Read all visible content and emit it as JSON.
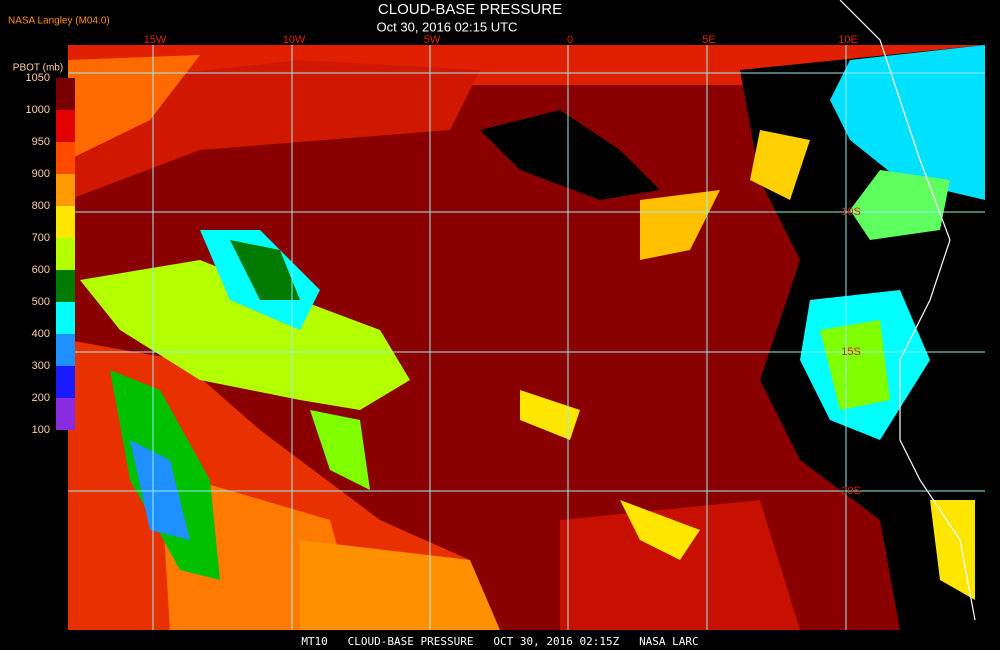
{
  "header": {
    "title": "CLOUD-BASE PRESSURE",
    "subtitle": "Oct 30, 2016 02:15 UTC",
    "source": "NASA Langley (M04.0)"
  },
  "legend": {
    "title": "PBOT (mb)",
    "ticks": [
      1050,
      1000,
      950,
      900,
      800,
      700,
      600,
      500,
      400,
      300,
      200,
      100
    ],
    "colors": [
      "#7a0000",
      "#e00000",
      "#ff4a00",
      "#ff9a00",
      "#ffe600",
      "#b4ff00",
      "#007a00",
      "#00ffff",
      "#1e90ff",
      "#1a1aff",
      "#8a2be2"
    ]
  },
  "map": {
    "lon_labels": [
      "15W",
      "10W",
      "5W",
      "0",
      "5E",
      "10E"
    ],
    "lat_labels": [
      "10S",
      "15S",
      "20S"
    ]
  },
  "footer": {
    "text": "MT10   CLOUD-BASE PRESSURE   OCT 30, 2016 02:15Z   NASA LARC"
  }
}
